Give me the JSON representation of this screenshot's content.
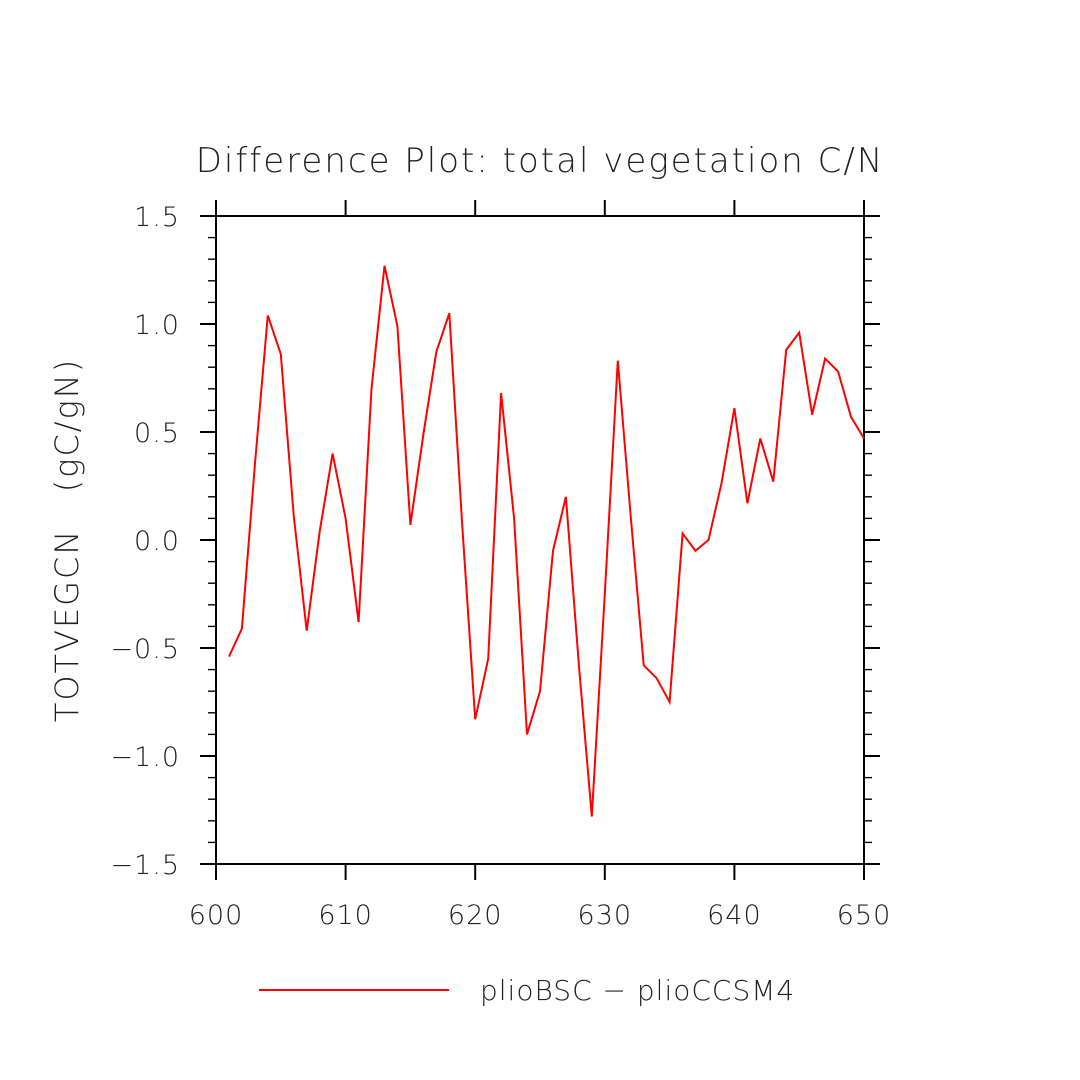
{
  "chart_data": {
    "type": "line",
    "title": "Difference Plot: total vegetation C/N",
    "xlabel": "",
    "ylabel": "TOTVEGCN   (gC/gN)",
    "xlim": [
      600,
      650
    ],
    "ylim": [
      -1.5,
      1.5
    ],
    "x_ticks": [
      600,
      610,
      620,
      630,
      640,
      650
    ],
    "x_tick_labels": [
      "600",
      "610",
      "620",
      "630",
      "640",
      "650"
    ],
    "y_ticks": [
      -1.5,
      -1.0,
      -0.5,
      0.0,
      0.5,
      1.0,
      1.5
    ],
    "y_tick_labels": [
      "−1.5",
      "−1.0",
      "−0.5",
      "0.0",
      "0.5",
      "1.0",
      "1.5"
    ],
    "grid": false,
    "legend_position": "bottom-center",
    "series": [
      {
        "name": "plioBSC − plioCCSM4",
        "color": "#ff0000",
        "x": [
          601,
          602,
          603,
          604,
          605,
          606,
          607,
          608,
          609,
          610,
          611,
          612,
          613,
          614,
          615,
          616,
          617,
          618,
          619,
          620,
          621,
          622,
          623,
          624,
          625,
          626,
          627,
          628,
          629,
          630,
          631,
          632,
          633,
          634,
          635,
          636,
          637,
          638,
          639,
          640,
          641,
          642,
          643,
          644,
          645,
          646,
          647,
          648,
          649,
          650
        ],
        "y": [
          -0.54,
          -0.41,
          0.35,
          1.04,
          0.86,
          0.11,
          -0.42,
          0.04,
          0.4,
          0.1,
          -0.38,
          0.7,
          1.27,
          0.99,
          0.07,
          0.49,
          0.87,
          1.05,
          0.07,
          -0.83,
          -0.55,
          0.68,
          0.1,
          -0.9,
          -0.7,
          -0.05,
          0.2,
          -0.58,
          -1.28,
          -0.25,
          0.83,
          0.11,
          -0.58,
          -0.64,
          -0.75,
          0.03,
          -0.05,
          0.0,
          0.26,
          0.61,
          0.17,
          0.47,
          0.27,
          0.88,
          0.96,
          0.58,
          0.84,
          0.78,
          0.57,
          0.47
        ]
      }
    ]
  }
}
